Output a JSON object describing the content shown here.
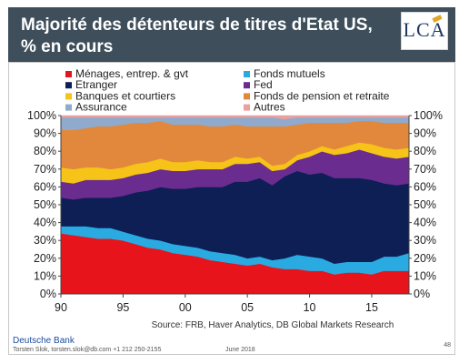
{
  "header": {
    "title": "Majorité des détenteurs de titres d'Etat US,\n % en cours",
    "logo": "LCA"
  },
  "chart_data": {
    "type": "area",
    "stacked": true,
    "x": [
      1990,
      1991,
      1992,
      1993,
      1994,
      1995,
      1996,
      1997,
      1998,
      1999,
      2000,
      2001,
      2002,
      2003,
      2004,
      2005,
      2006,
      2007,
      2008,
      2009,
      2010,
      2011,
      2012,
      2013,
      2014,
      2015,
      2016,
      2017,
      2018
    ],
    "xticks": [
      {
        "value": 1990,
        "label": "90"
      },
      {
        "value": 1995,
        "label": "95"
      },
      {
        "value": 2000,
        "label": "00"
      },
      {
        "value": 2005,
        "label": "05"
      },
      {
        "value": 2010,
        "label": "10"
      },
      {
        "value": 2015,
        "label": "15"
      }
    ],
    "yticks": [
      "0%",
      "10%",
      "20%",
      "30%",
      "40%",
      "50%",
      "60%",
      "70%",
      "80%",
      "90%",
      "100%"
    ],
    "ylim": [
      0,
      100
    ],
    "series": [
      {
        "name": "Ménages, entrep. & gvt",
        "color": "#e8141b",
        "values": [
          34,
          33,
          32,
          31,
          31,
          30,
          28,
          26,
          25,
          23,
          22,
          21,
          19,
          18,
          17,
          16,
          17,
          15,
          14,
          14,
          13,
          13,
          11,
          12,
          12,
          11,
          13,
          13,
          13
        ]
      },
      {
        "name": "Fonds mutuels",
        "color": "#29abe2",
        "values": [
          4,
          5,
          6,
          6,
          6,
          5,
          5,
          5,
          5,
          5,
          5,
          5,
          5,
          5,
          5,
          4,
          4,
          4,
          6,
          8,
          8,
          7,
          6,
          6,
          6,
          7,
          8,
          8,
          10
        ]
      },
      {
        "name": "Etranger",
        "color": "#0d1f55",
        "values": [
          16,
          15,
          16,
          17,
          17,
          20,
          24,
          27,
          30,
          31,
          32,
          34,
          36,
          37,
          41,
          43,
          44,
          42,
          46,
          47,
          46,
          48,
          48,
          47,
          47,
          46,
          41,
          40,
          39
        ]
      },
      {
        "name": "Fed",
        "color": "#6a2c8f",
        "values": [
          9,
          9,
          10,
          10,
          10,
          10,
          10,
          10,
          10,
          10,
          10,
          10,
          10,
          10,
          10,
          10,
          9,
          8,
          4,
          6,
          10,
          12,
          13,
          14,
          16,
          15,
          15,
          15,
          15
        ]
      },
      {
        "name": "Banques et courtiers",
        "color": "#f6c318",
        "values": [
          8,
          8,
          7,
          7,
          6,
          6,
          6,
          6,
          6,
          5,
          5,
          5,
          4,
          4,
          4,
          3,
          3,
          3,
          3,
          3,
          3,
          3,
          3,
          4,
          4,
          5,
          5,
          5,
          5
        ]
      },
      {
        "name": "Fonds de pension et retraite",
        "color": "#e2883c",
        "values": [
          21,
          22,
          22,
          23,
          24,
          24,
          23,
          22,
          21,
          21,
          21,
          20,
          20,
          20,
          18,
          18,
          17,
          22,
          21,
          17,
          16,
          13,
          15,
          13,
          12,
          13,
          14,
          15,
          14
        ]
      },
      {
        "name": "Assurance",
        "color": "#8faacc",
        "values": [
          7,
          7,
          6,
          5,
          5,
          4,
          3,
          3,
          2,
          4,
          4,
          4,
          5,
          5,
          4,
          5,
          5,
          5,
          4,
          4,
          3,
          3,
          3,
          3,
          2,
          2,
          3,
          3,
          3
        ]
      },
      {
        "name": "Autres",
        "color": "#e8a0a0",
        "values": [
          1,
          1,
          1,
          1,
          1,
          1,
          1,
          1,
          1,
          1,
          1,
          1,
          1,
          1,
          1,
          1,
          1,
          1,
          2,
          1,
          1,
          1,
          1,
          1,
          1,
          1,
          1,
          1,
          1
        ]
      }
    ],
    "legend_placement": "top",
    "source": "Source: FRB, Haver Analytics, DB Global Markets Research"
  },
  "footer": {
    "brand": "Deutsche Bank",
    "contact": "Torsten Slok, torsten.slok@db.com +1 212 250-2155",
    "date": "June 2018",
    "page": "48"
  }
}
